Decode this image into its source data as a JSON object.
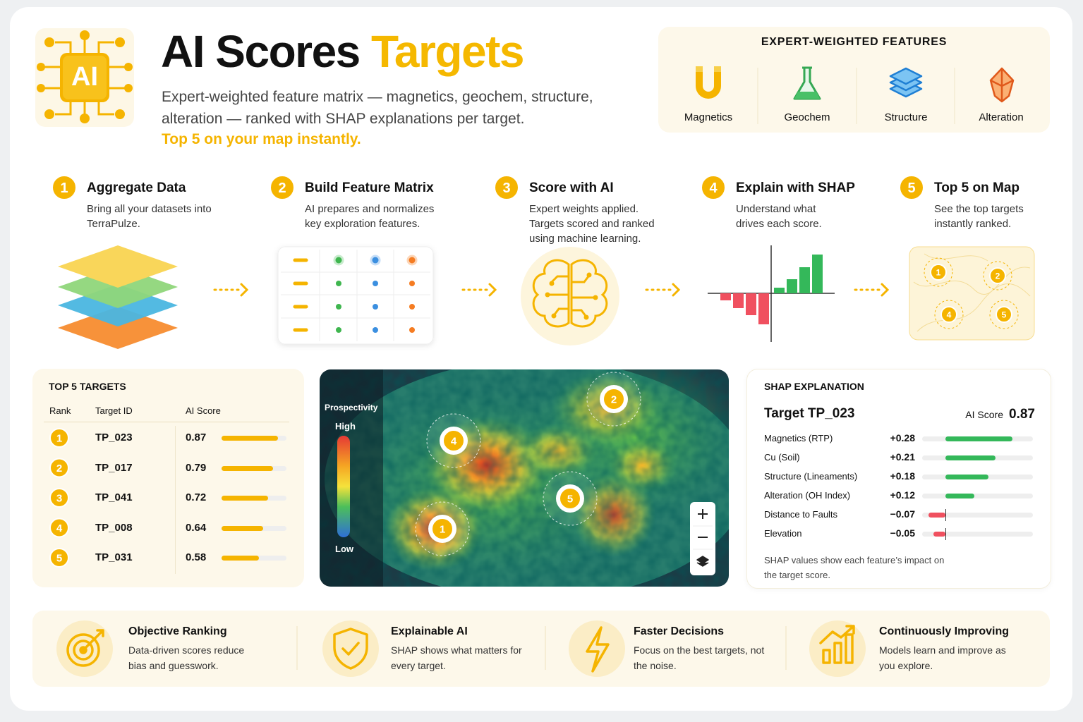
{
  "header": {
    "logo": "AI",
    "title": "AI Scores",
    "title_highlight": "Targets",
    "subtitle": "Expert-weighted feature matrix — magnetics, geochem, structure, alteration — ranked with SHAP explanations per target.",
    "tagline": "Top 5 on your map instantly."
  },
  "features": {
    "title": "EXPERT-WEIGHTED FEATURES",
    "items": [
      "Magnetics",
      "Geochem",
      "Structure",
      "Alteration"
    ]
  },
  "steps": [
    {
      "number": 1,
      "title": "Aggregate Data",
      "text": "Bring all your datasets into TerraPulze."
    },
    {
      "number": 2,
      "title": "Build Feature Matrix",
      "text": "AI prepares and normalizes key exploration features."
    },
    {
      "number": 3,
      "title": "Score with AI",
      "text": "Expert weights applied. Targets scored and ranked using machine learning."
    },
    {
      "number": 4,
      "title": "Explain with SHAP",
      "text": "Understand what drives each score."
    },
    {
      "number": 5,
      "title": "Top 5 on Map",
      "text": "See the top targets instantly ranked.",
      "pins": [
        1,
        2,
        4,
        5
      ]
    }
  ],
  "top_targets": {
    "title": "TOP 5 TARGETS",
    "columns": [
      "Rank",
      "Target ID",
      "AI Score"
    ],
    "rows": [
      {
        "rank": 1,
        "id": "TP_023",
        "score": 0.87
      },
      {
        "rank": 2,
        "id": "TP_017",
        "score": 0.79
      },
      {
        "rank": 3,
        "id": "TP_041",
        "score": 0.72
      },
      {
        "rank": 4,
        "id": "TP_008",
        "score": 0.64
      },
      {
        "rank": 5,
        "id": "TP_031",
        "score": 0.58
      }
    ]
  },
  "map": {
    "legend_title": "Prospectivity",
    "high": "High",
    "low": "Low",
    "markers": [
      2,
      4,
      5,
      1
    ]
  },
  "shap": {
    "title": "SHAP EXPLANATION",
    "target": "Target TP_023",
    "score_label": "AI Score",
    "score": 0.87,
    "features": [
      {
        "name": "Magnetics (RTP)",
        "value": 0.28,
        "label": "+0.28"
      },
      {
        "name": "Cu (Soil)",
        "value": 0.21,
        "label": "+0.21"
      },
      {
        "name": "Structure (Lineaments)",
        "value": 0.18,
        "label": "+0.18"
      },
      {
        "name": "Alteration (OH Index)",
        "value": 0.12,
        "label": "+0.12"
      },
      {
        "name": "Distance to Faults",
        "value": -0.07,
        "label": "−0.07"
      },
      {
        "name": "Elevation",
        "value": -0.05,
        "label": "−0.05"
      }
    ],
    "note": "SHAP values show each feature’s impact on the target score."
  },
  "benefits": [
    {
      "title": "Objective Ranking",
      "text": "Data-driven scores reduce bias and guesswork."
    },
    {
      "title": "Explainable AI",
      "text": "SHAP shows what matters for every target."
    },
    {
      "title": "Faster Decisions",
      "text": "Focus on the best targets, not the noise."
    },
    {
      "title": "Continuously Improving",
      "text": "Models learn and improve as you explore."
    }
  ]
}
